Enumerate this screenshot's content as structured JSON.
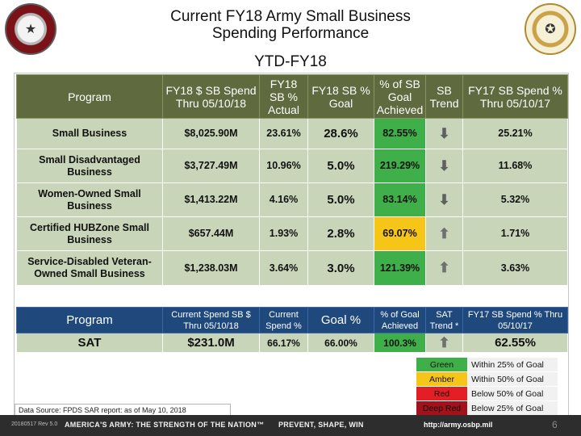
{
  "header": {
    "title_line1": "Current FY18 Army Small Business",
    "title_line2": "Spending Performance",
    "subtitle": "YTD-FY18"
  },
  "main_table": {
    "headers": [
      "Program",
      "FY18 $ SB Spend Thru 05/10/18",
      "FY18 SB % Actual",
      "FY18 SB % Goal",
      "% of SB Goal Achieved",
      "SB Trend",
      "FY17 SB Spend % Thru 05/10/17"
    ],
    "rows": [
      {
        "program": "Small Business",
        "spend": "$8,025.90M",
        "actual": "23.61%",
        "goal": "28.6%",
        "achieved": "82.55%",
        "trend": "down",
        "fy17": "25.21%",
        "status": "green"
      },
      {
        "program": "Small Disadvantaged Business",
        "spend": "$3,727.49M",
        "actual": "10.96%",
        "goal": "5.0%",
        "achieved": "219.29%",
        "trend": "down",
        "fy17": "11.68%",
        "status": "green"
      },
      {
        "program": "Women-Owned Small Business",
        "spend": "$1,413.22M",
        "actual": "4.16%",
        "goal": "5.0%",
        "achieved": "83.14%",
        "trend": "down",
        "fy17": "5.32%",
        "status": "green"
      },
      {
        "program": "Certified HUBZone Small Business",
        "spend": "$657.44M",
        "actual": "1.93%",
        "goal": "2.8%",
        "achieved": "69.07%",
        "trend": "up",
        "fy17": "1.71%",
        "status": "amber"
      },
      {
        "program": "Service-Disabled Veteran-Owned Small Business",
        "spend": "$1,238.03M",
        "actual": "3.64%",
        "goal": "3.0%",
        "achieved": "121.39%",
        "trend": "up",
        "fy17": "3.63%",
        "status": "green"
      }
    ]
  },
  "sat_table": {
    "headers": [
      "Program",
      "Current Spend SB $ Thru 05/10/18",
      "Current Spend %",
      "Goal %",
      "% of Goal Achieved",
      "SAT Trend *",
      "FY17 SB Spend % Thru 05/10/17"
    ],
    "row": {
      "program": "SAT",
      "spend": "$231.0M",
      "spend_pct": "66.17%",
      "goal": "66.00%",
      "achieved": "100.3%",
      "trend": "up",
      "fy17": "62.55%"
    }
  },
  "legend": [
    {
      "label": "Green",
      "desc": "Within 25% of Goal",
      "color": "#3fb049",
      "text_color": "#111111"
    },
    {
      "label": "Amber",
      "desc": "Within 50% of Goal",
      "color": "#f5c518",
      "text_color": "#111111"
    },
    {
      "label": "Red",
      "desc": "Below 50% of Goal",
      "color": "#e31e24",
      "text_color": "#111111"
    },
    {
      "label": "Deep Red",
      "desc": "Below 25% of Goal",
      "color": "#a3111a",
      "text_color": "#111111"
    }
  ],
  "source_note": "Data Source: FPDS SAR report: as of May 10, 2018",
  "footer": {
    "date": "20180517 Rev 5.0",
    "brand": "AMERICA'S ARMY: THE STRENGTH OF THE NATION™",
    "tagline": "PREVENT, SHAPE, WIN",
    "url": "http://army.osbp.mil",
    "page": "6"
  },
  "colors": {
    "header_green": "#5f6a3f",
    "cell_green": "#c9d5b9",
    "header_blue": "#1f497d",
    "status_green": "#3fb049",
    "status_amber": "#f5c518"
  },
  "icons": {
    "trend_down": "down-arrow-icon",
    "trend_up": "up-arrow-icon"
  }
}
